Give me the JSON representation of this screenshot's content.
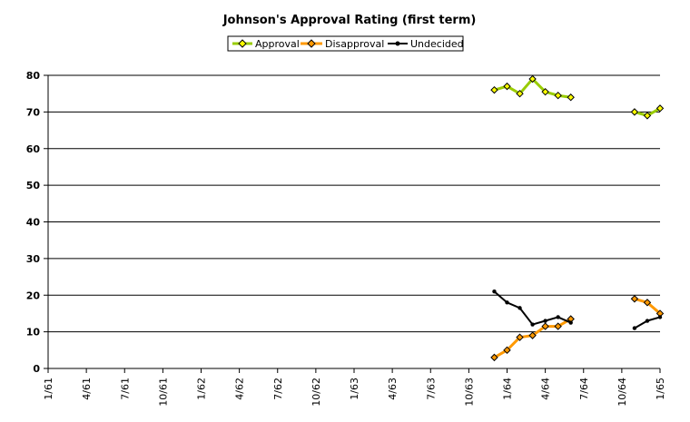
{
  "chart_data": {
    "type": "line",
    "title": "Johnson's Approval Rating (first term)",
    "xlabel": "",
    "ylabel": "",
    "ylim": [
      0,
      80
    ],
    "yticks": [
      0,
      10,
      20,
      30,
      40,
      50,
      60,
      70,
      80
    ],
    "xticks": [
      "1/61",
      "4/61",
      "7/61",
      "10/61",
      "1/62",
      "4/62",
      "7/62",
      "10/62",
      "1/63",
      "4/63",
      "7/63",
      "10/63",
      "1/64",
      "4/64",
      "7/64",
      "10/64",
      "1/65"
    ],
    "grid": "horizontal",
    "legend_position": "top-center",
    "series": [
      {
        "name": "Approval",
        "color": "#99cc00",
        "marker": "diamond",
        "points": [
          [
            "12/63",
            76
          ],
          [
            "1/64",
            77
          ],
          [
            "2/64",
            75
          ],
          [
            "3/64",
            79
          ],
          [
            "4/64",
            75.5
          ],
          [
            "5/64",
            74.5
          ],
          [
            "6/64",
            74
          ],
          null,
          [
            "11/64",
            70
          ],
          [
            "12/64",
            69
          ],
          [
            "1/65",
            71
          ]
        ]
      },
      {
        "name": "Disapproval",
        "color": "#ff9900",
        "marker": "diamond",
        "points": [
          [
            "12/63",
            3
          ],
          [
            "1/64",
            5
          ],
          [
            "2/64",
            8.5
          ],
          [
            "3/64",
            9
          ],
          [
            "4/64",
            11.5
          ],
          [
            "5/64",
            11.5
          ],
          [
            "6/64",
            13.5
          ],
          null,
          [
            "11/64",
            19
          ],
          [
            "12/64",
            18
          ],
          [
            "1/65",
            15
          ]
        ]
      },
      {
        "name": "Undecided",
        "color": "#000000",
        "marker": "dot",
        "points": [
          [
            "12/63",
            21
          ],
          [
            "1/64",
            18
          ],
          [
            "2/64",
            16.5
          ],
          [
            "3/64",
            12
          ],
          [
            "4/64",
            13
          ],
          [
            "5/64",
            14
          ],
          [
            "6/64",
            12.5
          ],
          null,
          [
            "11/64",
            11
          ],
          [
            "12/64",
            13
          ],
          [
            "1/65",
            14
          ]
        ]
      }
    ]
  }
}
